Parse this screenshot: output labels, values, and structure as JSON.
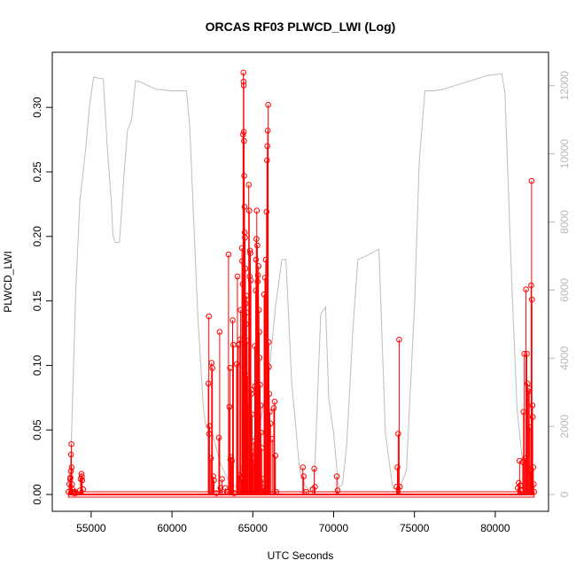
{
  "chart_data": {
    "type": "line",
    "title": "ORCAS RF03 PLWCD_LWI (Log)",
    "xlabel": "UTC Seconds",
    "ylabel": "PLWCD_LWI",
    "xlim": [
      53500,
      82500
    ],
    "ylim": [
      0,
      0.33
    ],
    "y2lim": [
      0,
      12500
    ],
    "x_ticks": [
      55000,
      60000,
      65000,
      70000,
      75000,
      80000
    ],
    "y_ticks": [
      0.0,
      0.05,
      0.1,
      0.15,
      0.2,
      0.25,
      0.3
    ],
    "y_tick_labels": [
      "0.00",
      "0.05",
      "0.10",
      "0.15",
      "0.20",
      "0.25",
      "0.30"
    ],
    "y2_ticks": [
      0,
      2000,
      4000,
      6000,
      8000,
      10000,
      12000
    ],
    "grid": false,
    "legend": "none",
    "colors": {
      "primary": "#ff0000",
      "secondary": "#bebebe",
      "frame": "#000000"
    },
    "series": [
      {
        "axis": "left",
        "style": "line-with-points",
        "color": "#ff0000",
        "points": [
          [
            53600,
            0.002
          ],
          [
            53650,
            0.008
          ],
          [
            53700,
            0.012
          ],
          [
            53720,
            0.013
          ],
          [
            53740,
            0.018
          ],
          [
            53760,
            0.031
          ],
          [
            53780,
            0.039
          ],
          [
            53800,
            0.021
          ],
          [
            53820,
            0.008
          ],
          [
            53850,
            0.004
          ],
          [
            53900,
            0.002
          ],
          [
            53950,
            0.001
          ],
          [
            54000,
            0.002
          ],
          [
            54050,
            0.001
          ],
          [
            54300,
            0.003
          ],
          [
            54350,
            0.012
          ],
          [
            54400,
            0.016
          ],
          [
            54420,
            0.014
          ],
          [
            54450,
            0.011
          ],
          [
            54500,
            0.004
          ],
          [
            62250,
            0.086
          ],
          [
            62280,
            0.138
          ],
          [
            62300,
            0.047
          ],
          [
            62320,
            0.053
          ],
          [
            62400,
            0.028
          ],
          [
            62450,
            0.102
          ],
          [
            62500,
            0.098
          ],
          [
            62550,
            0.014
          ],
          [
            62600,
            0.011
          ],
          [
            62750,
            0.001
          ],
          [
            62900,
            0.044
          ],
          [
            62950,
            0.126
          ],
          [
            63000,
            0.005
          ],
          [
            63100,
            0.012
          ],
          [
            63300,
            0.005
          ],
          [
            63400,
            0.002
          ],
          [
            63500,
            0.186
          ],
          [
            63550,
            0.068
          ],
          [
            63600,
            0.098
          ],
          [
            63620,
            0.027
          ],
          [
            63650,
            0.029
          ],
          [
            63700,
            0.026
          ],
          [
            63750,
            0.135
          ],
          [
            63800,
            0.116
          ],
          [
            63850,
            0.001
          ],
          [
            64000,
            0.101
          ],
          [
            64050,
            0.169
          ],
          [
            64100,
            0.116
          ],
          [
            64150,
            0.015
          ],
          [
            64200,
            0.12
          ],
          [
            64250,
            0.143
          ],
          [
            64300,
            0.012
          ],
          [
            64330,
            0.191
          ],
          [
            64350,
            0.181
          ],
          [
            64380,
            0.163
          ],
          [
            64400,
            0.279
          ],
          [
            64420,
            0.327
          ],
          [
            64430,
            0.32
          ],
          [
            64440,
            0.317
          ],
          [
            64450,
            0.281
          ],
          [
            64460,
            0.274
          ],
          [
            64470,
            0.247
          ],
          [
            64490,
            0.223
          ],
          [
            64500,
            0.203
          ],
          [
            64520,
            0.199
          ],
          [
            64540,
            0.175
          ],
          [
            64560,
            0.148
          ],
          [
            64580,
            0.132
          ],
          [
            64600,
            0.154
          ],
          [
            64620,
            0.141
          ],
          [
            64650,
            0.119
          ],
          [
            64680,
            0.092
          ],
          [
            64700,
            0.071
          ],
          [
            64750,
            0.24
          ],
          [
            64780,
            0.22
          ],
          [
            64800,
            0.169
          ],
          [
            64830,
            0.189
          ],
          [
            64850,
            0.187
          ],
          [
            64880,
            0.166
          ],
          [
            64900,
            0.081
          ],
          [
            64920,
            0.078
          ],
          [
            64950,
            0.062
          ],
          [
            64980,
            0.033
          ],
          [
            65000,
            0.028
          ],
          [
            65050,
            0.041
          ],
          [
            65100,
            0.024
          ],
          [
            65120,
            0.115
          ],
          [
            65150,
            0.084
          ],
          [
            65180,
            0.158
          ],
          [
            65200,
            0.182
          ],
          [
            65220,
            0.198
          ],
          [
            65250,
            0.22
          ],
          [
            65280,
            0.193
          ],
          [
            65300,
            0.165
          ],
          [
            65320,
            0.17
          ],
          [
            65350,
            0.177
          ],
          [
            65380,
            0.143
          ],
          [
            65400,
            0.126
          ],
          [
            65420,
            0.106
          ],
          [
            65450,
            0.085
          ],
          [
            65480,
            0.069
          ],
          [
            65500,
            0.048
          ],
          [
            65550,
            0.036
          ],
          [
            65600,
            0.012
          ],
          [
            65650,
            0.005
          ],
          [
            65700,
            0.155
          ],
          [
            65750,
            0.168
          ],
          [
            65800,
            0.182
          ],
          [
            65850,
            0.219
          ],
          [
            65880,
            0.259
          ],
          [
            65900,
            0.27
          ],
          [
            65920,
            0.282
          ],
          [
            65950,
            0.302
          ],
          [
            65980,
            0.118
          ],
          [
            66000,
            0.099
          ],
          [
            66020,
            0.078
          ],
          [
            66050,
            0.064
          ],
          [
            66100,
            0.055
          ],
          [
            66200,
            0.043
          ],
          [
            66300,
            0.067
          ],
          [
            66350,
            0.072
          ],
          [
            66400,
            0.03
          ],
          [
            66450,
            0.002
          ],
          [
            68100,
            0.021
          ],
          [
            68150,
            0.014
          ],
          [
            68300,
            0.002
          ],
          [
            68700,
            0.004
          ],
          [
            68800,
            0.02
          ],
          [
            68850,
            0.006
          ],
          [
            70200,
            0.014
          ],
          [
            70250,
            0.003
          ],
          [
            73900,
            0.006
          ],
          [
            73950,
            0.021
          ],
          [
            74000,
            0.047
          ],
          [
            74050,
            0.12
          ],
          [
            74100,
            0.006
          ],
          [
            81400,
            0.005
          ],
          [
            81450,
            0.009
          ],
          [
            81500,
            0.026
          ],
          [
            81550,
            0.007
          ],
          [
            81600,
            0.003
          ],
          [
            81700,
            0.025
          ],
          [
            81750,
            0.064
          ],
          [
            81800,
            0.109
          ],
          [
            81850,
            0.028
          ],
          [
            81900,
            0.159
          ],
          [
            81950,
            0.109
          ],
          [
            82000,
            0.086
          ],
          [
            82050,
            0.08
          ],
          [
            82100,
            0.082
          ],
          [
            82150,
            0.052
          ],
          [
            82200,
            0.018
          ],
          [
            82220,
            0.162
          ],
          [
            82250,
            0.243
          ],
          [
            82270,
            0.151
          ],
          [
            82300,
            0.069
          ],
          [
            82320,
            0.06
          ],
          [
            82350,
            0.021
          ],
          [
            82380,
            0.008
          ],
          [
            82400,
            0.002
          ]
        ]
      },
      {
        "axis": "right",
        "style": "line",
        "color": "#bebebe",
        "points": [
          [
            53600,
            100
          ],
          [
            53750,
            1200
          ],
          [
            54050,
            6000
          ],
          [
            54300,
            8600
          ],
          [
            54650,
            10100
          ],
          [
            54900,
            11400
          ],
          [
            55150,
            12250
          ],
          [
            55750,
            12200
          ],
          [
            56000,
            10200
          ],
          [
            56250,
            8550
          ],
          [
            56350,
            7600
          ],
          [
            56500,
            7400
          ],
          [
            56750,
            7400
          ],
          [
            57050,
            9500
          ],
          [
            57250,
            10700
          ],
          [
            57500,
            11000
          ],
          [
            57750,
            12150
          ],
          [
            58100,
            12100
          ],
          [
            59000,
            11900
          ],
          [
            60000,
            11850
          ],
          [
            60900,
            11850
          ],
          [
            61100,
            10800
          ],
          [
            61600,
            5200
          ],
          [
            61950,
            2500
          ],
          [
            62100,
            2000
          ],
          [
            62500,
            1800
          ],
          [
            63000,
            900
          ],
          [
            63500,
            400
          ],
          [
            64000,
            200
          ],
          [
            64500,
            1200
          ],
          [
            65000,
            1600
          ],
          [
            65500,
            2200
          ],
          [
            66000,
            3500
          ],
          [
            66400,
            5500
          ],
          [
            66800,
            6900
          ],
          [
            67050,
            6900
          ],
          [
            67400,
            3300
          ],
          [
            67600,
            2300
          ],
          [
            67900,
            700
          ],
          [
            68200,
            300
          ],
          [
            68500,
            100
          ],
          [
            68800,
            300
          ],
          [
            69200,
            5300
          ],
          [
            69500,
            5500
          ],
          [
            69700,
            2800
          ],
          [
            70000,
            1800
          ],
          [
            70300,
            200
          ],
          [
            70550,
            300
          ],
          [
            70800,
            1400
          ],
          [
            71200,
            4900
          ],
          [
            71500,
            6900
          ],
          [
            72000,
            7000
          ],
          [
            72400,
            7100
          ],
          [
            72800,
            7200
          ],
          [
            73200,
            1800
          ],
          [
            73650,
            200
          ],
          [
            74000,
            100
          ],
          [
            74500,
            700
          ],
          [
            75000,
            5500
          ],
          [
            75300,
            9800
          ],
          [
            75650,
            11850
          ],
          [
            76200,
            11850
          ],
          [
            76800,
            11900
          ],
          [
            77500,
            12000
          ],
          [
            78500,
            12150
          ],
          [
            79500,
            12300
          ],
          [
            80400,
            12350
          ],
          [
            80600,
            11800
          ],
          [
            81000,
            6500
          ],
          [
            81350,
            2500
          ],
          [
            81700,
            900
          ],
          [
            82000,
            400
          ],
          [
            82300,
            100
          ]
        ]
      }
    ]
  }
}
